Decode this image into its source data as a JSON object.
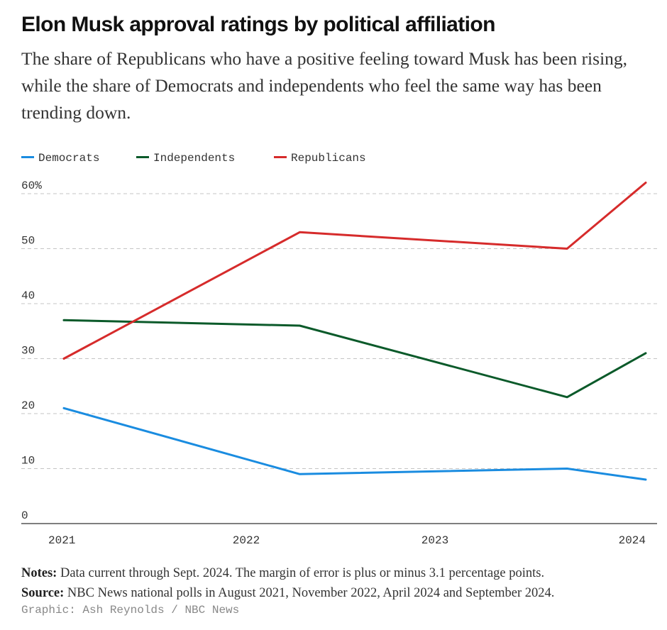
{
  "title": "Elon Musk approval ratings by political affiliation",
  "subtitle": "The share of Republicans who have a positive feeling toward Musk has been rising, while the share of Democrats and independents who feel the same way has been trending down.",
  "notes": {
    "label": "Notes:",
    "text": "Data current through Sept. 2024. The margin of error is plus or minus 3.1 percentage points."
  },
  "source": {
    "label": "Source:",
    "text": "NBC News national polls in August 2021, November 2022, April 2024 and September 2024."
  },
  "credit": "Graphic: Ash Reynolds / NBC News",
  "chart_data": {
    "type": "line",
    "x": [
      "2021-08",
      "2022-11",
      "2024-04",
      "2024-09"
    ],
    "x_ticks": [
      "2021",
      "2022",
      "2023",
      "2024"
    ],
    "y_ticks": [
      "0",
      "10",
      "20",
      "30",
      "40",
      "50",
      "60%"
    ],
    "ylim": [
      0,
      60
    ],
    "grid": true,
    "legend_position": "top-left",
    "series": [
      {
        "name": "Democrats",
        "color": "#1a8ce0",
        "values": [
          21,
          9,
          10,
          8
        ]
      },
      {
        "name": "Independents",
        "color": "#0b5a2a",
        "values": [
          37,
          36,
          23,
          31
        ]
      },
      {
        "name": "Republicans",
        "color": "#d62b2b",
        "values": [
          30,
          53,
          50,
          62
        ]
      }
    ]
  }
}
